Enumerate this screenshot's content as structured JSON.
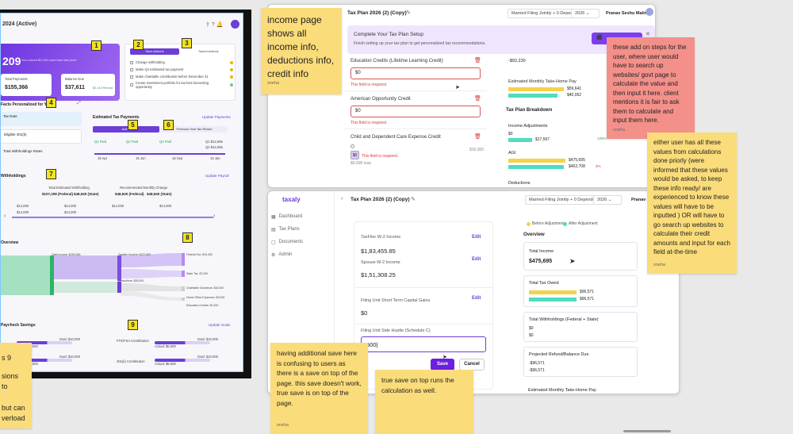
{
  "left_dashboard": {
    "title": "2024 (Active)",
    "hero_value": "209",
    "hero_sub": "Your saved $2,209 more than last year!",
    "total_payments_label": "Total Payments",
    "total_payments_value": "$155,366",
    "balance_due_label": "Balance Due",
    "balance_due_value": "$37,611",
    "balance_due_note": "$2,143 Refund",
    "tab_active": "Save Actions",
    "tab_other": "Saved Actions",
    "actions": [
      "Change withholding",
      "Make Q4 estimated tax payment",
      "Make charitable contribution before December 31",
      "Create investment portfolio for tax-loss harvesting opportunity"
    ],
    "facts_title": "Facts Personalized for You",
    "facts": [
      "Tax Rate",
      "Eligible 401(k)",
      "Total Withholdings Rates"
    ],
    "est_payments_title": "Estimated Tax Payments",
    "update_payments": "Update Payments",
    "est_tab_active": "Active",
    "est_tab_other": "Previous Year Tax Return",
    "est_rows": [
      "Q1 Paid",
      "Q2 Paid",
      "Q3 Paid"
    ],
    "est_values": [
      "Q1 $12,555",
      "Q2 $12,555",
      "Q3 $12,555"
    ],
    "est_dates": [
      "15 Apr",
      "15 Jun",
      "15 Sep",
      "15 Jan"
    ],
    "withholdings_title": "Withholdings",
    "update_payroll": "Update Payroll",
    "with_fed_label": "Total Estimated Withholding",
    "with_fed_value": "$107,208 (Federal)",
    "with_state_value": "$48,940 (State)",
    "with_rec_label": "Recommended Monthly Change",
    "with_rec_fed": "$48,940 (Federal)",
    "with_rec_state": "$48,940 (State)",
    "timeline_values": [
      "$14,000",
      "$14,000",
      "$14,000",
      "$14,000",
      "$14,000",
      "$14,000"
    ],
    "overview_title": "Overview",
    "sankey_labels": [
      "Total Income: $155,366",
      "Taxable Income: $127,000",
      "Federal Tax: $19,400",
      "State Tax: $7,090",
      "Charitable Donations: $18,000",
      "Home Office Expenses: $9,000",
      "Education Credits: $1,000",
      "Deductions: $28,000"
    ],
    "paycheck_title": "Paycheck Savings",
    "update_goals": "Update Goals",
    "paycheck_rows": [
      "FTE/FSA Contribution",
      "401(k) Contribution"
    ],
    "paycheck_goal": "Goal: $10,000",
    "paycheck_actual": "Actual: $5,000",
    "markers": [
      "1",
      "2",
      "3",
      "4",
      "5",
      "6",
      "7",
      "8",
      "9"
    ],
    "clipped_note": [
      "s 9",
      "sions to",
      "but can",
      "verload"
    ]
  },
  "top_window": {
    "title": "Tax Plan 2026 (2) (Copy)",
    "filing": "Married Filing Jointly + 0 Dependents",
    "year": "2026",
    "user": "Pranav Seshu Malina",
    "banner_title": "Complete Your Tax Plan Setup",
    "banner_sub": "Finish setting up your tax plan to get personalized tax recommendations.",
    "fields": [
      {
        "label": "Education Credits (Lifetime Learning Credit)",
        "value": "$0",
        "error": "This field is required."
      },
      {
        "label": "American Opportunity Credit",
        "value": "$0",
        "error": "This field is required."
      },
      {
        "label": "Child and Dependent Care Expense Credit",
        "value": "$0",
        "error": "This field is required."
      }
    ],
    "extra_value": "$0,000 max",
    "right_value_top": "-$92,230",
    "monthly_label": "Estimated Monthly Take-Home Pay",
    "monthly_values": [
      "$59,641",
      "$40,052"
    ],
    "breakdown_title": "Tax Plan Breakdown",
    "income_adj_label": "Income Adjustments",
    "income_adj_values": [
      "$0",
      "$17,567"
    ],
    "income_adj_pct": "125%",
    "agi_label": "AGI",
    "agi_values": [
      "$475,695",
      "$462,708"
    ],
    "agi_pct": "3%",
    "deductions_label": "Deductions",
    "field3_right": "$16,000"
  },
  "bottom_window": {
    "logo": "taxaly",
    "title": "Tax Plan 2026 (2) (Copy)",
    "filing": "Married Filing Jointly + 0 Dependents",
    "year": "2026",
    "user": "Pranav S",
    "nav": [
      "Dashboard",
      "Tax Plans",
      "Documents",
      "Admin"
    ],
    "legend_before": "Before Adjustment",
    "legend_after": "After Adjustment",
    "overview": "Overview",
    "taxfiler_label": "TaxFiler W-2 Income",
    "taxfiler_value": "$1,83,455.85",
    "spouse_label": "Spouse W-2 Income",
    "spouse_value": "$1,51,308.25",
    "stcg_label": "Filing Unit Short Term Capital Gains",
    "stcg_value": "$0",
    "side_label": "Filing Unit Side Hustle (Schedule C)",
    "side_input": "500",
    "edit_label": "Edit",
    "save": "Save",
    "cancel": "Cancel",
    "total_income_label": "Total Income",
    "total_income_value": "$475,695",
    "total_tax_label": "Total Tax Owed",
    "total_tax_values": [
      "$96,571",
      "$96,571"
    ],
    "withholdings_label": "Total Withholdings (Federal + State)",
    "withholdings_values": [
      "$0",
      "$0"
    ],
    "refund_label": "Projected Refund/Balance Due",
    "refund_values": [
      "-$96,571",
      "-$96,571"
    ],
    "monthly_label": "Estimated Monthly Take-Home Pay"
  },
  "stickies": {
    "income_page": "income page shows all income info, deductions info, credit info",
    "red_note": "these add on steps for the user, where user would have to search up websites/ govt page to calculate the value and then input it here. client mentions it is fair to ask them to calculate and input them here.",
    "either_note": "either user has all these values from calculations done priorly (were informed that these values would be asked, to keep these info ready/ are experienced to know these values will have to be inputted ) OR will have to go search up websites to calculate their credit amounts and input for each field at-the-time",
    "save_note": "having additional save here is confusing to users as there is a save on top of the page. this save doesn't work, true save is on top of the page.",
    "true_save": "true save on top runs the calculation as well.",
    "author": "sneha"
  }
}
